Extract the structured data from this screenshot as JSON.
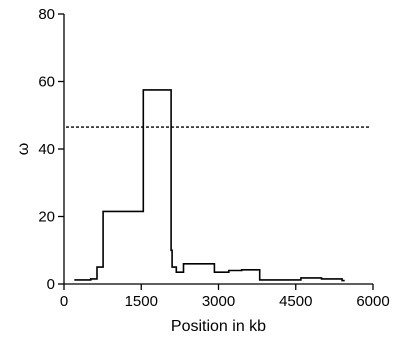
{
  "chart_data": {
    "type": "line",
    "xlabel": "Position in kb",
    "ylabel": "ω",
    "xlim": [
      0,
      6000
    ],
    "ylim": [
      0,
      80
    ],
    "x_ticks": [
      0,
      1500,
      3000,
      4500,
      6000
    ],
    "y_ticks": [
      0,
      20,
      40,
      60,
      80
    ],
    "x_tick_labels": [
      "0",
      "1500",
      "3000",
      "4500",
      "6000"
    ],
    "y_tick_labels": [
      "0",
      "20",
      "40",
      "60",
      "80"
    ],
    "grid": false,
    "legend": "none",
    "series": [
      {
        "step": true,
        "x": [
          200,
          520,
          640,
          700,
          760,
          1540,
          2080,
          2100,
          2180,
          2240,
          2320,
          2920,
          3000,
          3200,
          3450,
          3800,
          4600,
          5000,
          5400,
          5450
        ],
        "y": [
          1.2,
          1.5,
          5.0,
          5.0,
          21.5,
          57.5,
          10.0,
          5.0,
          3.5,
          3.5,
          6.0,
          3.5,
          3.5,
          4.0,
          4.2,
          1.2,
          1.8,
          1.5,
          1.0,
          1.0
        ]
      }
    ],
    "threshold": {
      "y": 46.5,
      "style": "dashed",
      "x_range": [
        0,
        6000
      ]
    }
  }
}
